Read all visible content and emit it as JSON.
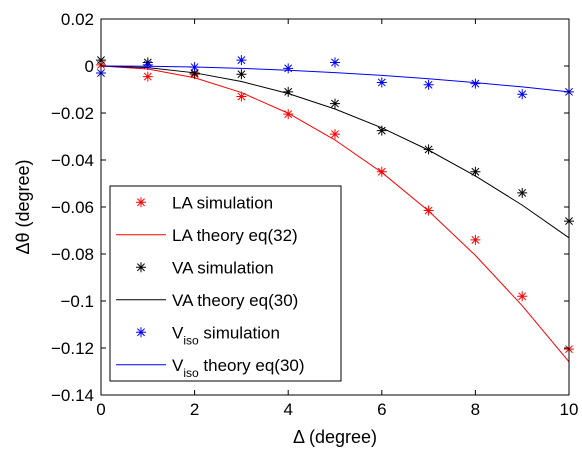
{
  "chart_data": {
    "type": "line",
    "title": "",
    "xlabel": "Δ (degree)",
    "ylabel": "Δθ (degree)",
    "xlim": [
      0,
      10
    ],
    "ylim": [
      -0.14,
      0.02
    ],
    "xticks": [
      0,
      2,
      4,
      6,
      8,
      10
    ],
    "xtick_labels": [
      "0",
      "2",
      "4",
      "6",
      "8",
      "10"
    ],
    "yticks": [
      0.02,
      0,
      -0.02,
      -0.04,
      -0.06,
      -0.08,
      -0.1,
      -0.12,
      -0.14
    ],
    "ytick_labels": [
      "0.02",
      "0",
      "−0.02",
      "−0.04",
      "−0.06",
      "−0.08",
      "−0.1",
      "−0.12",
      "−0.14"
    ],
    "grid": false,
    "legend_position": "bottom-left",
    "series": [
      {
        "name": "LA simulation",
        "legend_main": "LA simulation",
        "legend_sub": "",
        "legend_rest": "",
        "kind": "markers",
        "marker": "*",
        "color": "#ff0000",
        "x": [
          0,
          1,
          2,
          3,
          4,
          5,
          6,
          7,
          8,
          9,
          10
        ],
        "y": [
          0.0005,
          -0.0045,
          -0.0035,
          -0.013,
          -0.0205,
          -0.029,
          -0.045,
          -0.0615,
          -0.074,
          -0.098,
          -0.1205
        ]
      },
      {
        "name": "LA theory eq(32)",
        "legend_main": "LA theory eq(32)",
        "legend_sub": "",
        "legend_rest": "",
        "kind": "line",
        "color": "#ff0000",
        "x": [
          0,
          1,
          2,
          3,
          4,
          5,
          6,
          7,
          8,
          9,
          10
        ],
        "y": [
          0,
          -0.0013,
          -0.005,
          -0.0113,
          -0.0201,
          -0.0315,
          -0.0453,
          -0.0617,
          -0.0806,
          -0.102,
          -0.1259
        ]
      },
      {
        "name": "VA simulation",
        "legend_main": "VA simulation",
        "legend_sub": "",
        "legend_rest": "",
        "kind": "markers",
        "marker": "*",
        "color": "#000000",
        "x": [
          0,
          1,
          2,
          3,
          4,
          5,
          6,
          7,
          8,
          9,
          10
        ],
        "y": [
          0.0025,
          0.0015,
          -0.003,
          -0.0035,
          -0.011,
          -0.016,
          -0.0275,
          -0.0355,
          -0.045,
          -0.054,
          -0.066
        ]
      },
      {
        "name": "VA theory eq(30)",
        "legend_main": "VA theory eq(30)",
        "legend_sub": "",
        "legend_rest": "",
        "kind": "line",
        "color": "#000000",
        "x": [
          0,
          1,
          2,
          3,
          4,
          5,
          6,
          7,
          8,
          9,
          10
        ],
        "y": [
          0,
          -0.0007,
          -0.0029,
          -0.0066,
          -0.0117,
          -0.0183,
          -0.0263,
          -0.0358,
          -0.0468,
          -0.0592,
          -0.0731
        ]
      },
      {
        "name": "Viso simulation",
        "legend_main": "V",
        "legend_sub": "iso",
        "legend_rest": " simulation",
        "kind": "markers",
        "marker": "*",
        "color": "#0000ff",
        "x": [
          0,
          1,
          2,
          3,
          4,
          5,
          6,
          7,
          8,
          9,
          10
        ],
        "y": [
          -0.003,
          0.0005,
          -0.0005,
          0.0025,
          -0.001,
          0.0015,
          -0.007,
          -0.008,
          -0.0075,
          -0.012,
          -0.011
        ]
      },
      {
        "name": "Viso theory eq(30)",
        "legend_main": "V",
        "legend_sub": "iso",
        "legend_rest": " theory eq(30)",
        "kind": "line",
        "color": "#0000ff",
        "x": [
          0,
          1,
          2,
          3,
          4,
          5,
          6,
          7,
          8,
          9,
          10
        ],
        "y": [
          0,
          -0.0001,
          -0.0004,
          -0.001,
          -0.0018,
          -0.0028,
          -0.004,
          -0.0054,
          -0.0071,
          -0.0089,
          -0.011
        ]
      }
    ]
  }
}
